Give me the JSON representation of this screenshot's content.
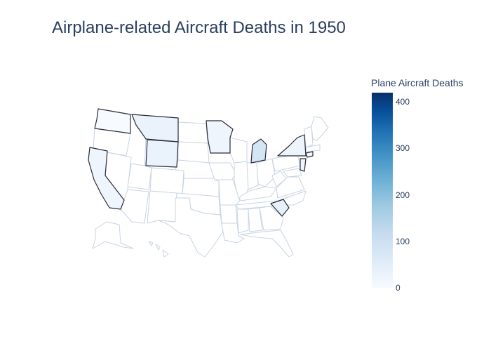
{
  "title": "Airplane-related Aircraft Deaths in 1950",
  "colorbar": {
    "title": "Plane Aircraft Deaths",
    "ticks": [
      "0",
      "100",
      "200",
      "300",
      "400"
    ],
    "tick_values": [
      0,
      100,
      200,
      300,
      400
    ],
    "max": 420,
    "colorscale": "Blues"
  },
  "map": {
    "scope": "usa",
    "highlighted_states": [
      {
        "state": "Washington",
        "fill": "#f7fbff"
      },
      {
        "state": "Montana",
        "fill": "#eaf3fc"
      },
      {
        "state": "Wyoming",
        "fill": "#eaf3fc"
      },
      {
        "state": "Minnesota",
        "fill": "#eef5fd"
      },
      {
        "state": "Michigan",
        "fill": "#d4e5f4"
      },
      {
        "state": "New York",
        "fill": "#edf4fc"
      },
      {
        "state": "California",
        "fill": "#eef5fd"
      },
      {
        "state": "South Carolina",
        "fill": "#e6f0fa"
      },
      {
        "state": "New Jersey",
        "fill": "#eef5fd"
      },
      {
        "state": "Connecticut",
        "fill": "#f2f7fd"
      }
    ],
    "border_color": "#c8d4e3",
    "highlight_border_color": "#2a2a3a"
  }
}
